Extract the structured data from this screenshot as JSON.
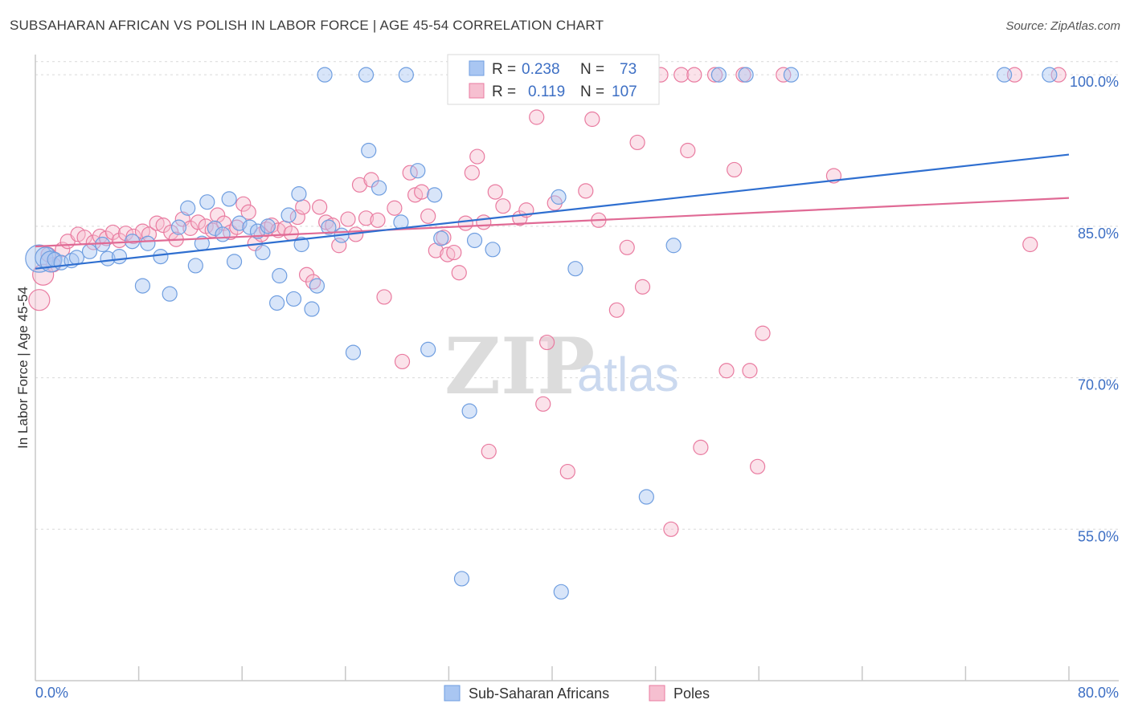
{
  "title": "SUBSAHARAN AFRICAN VS POLISH IN LABOR FORCE | AGE 45-54 CORRELATION CHART",
  "source": "Source: ZipAtlas.com",
  "colors": {
    "blue": "#6f9ee0",
    "blue_fill": "#a9c6f2",
    "pink": "#e97ba0",
    "pink_fill": "#f6bfd0",
    "blue_line": "#2f6fd0",
    "pink_line": "#e06a95",
    "grid": "#d9d9d9",
    "tick_text": "#3d6fc4"
  },
  "legend": {
    "r_label": "R =",
    "n_label": "N =",
    "series1": {
      "r": "0.238",
      "n": "73"
    },
    "series2": {
      "r": "0.119",
      "n": "107"
    }
  },
  "watermark": {
    "zip": "ZIP",
    "atlas": "atlas"
  },
  "chart_data": {
    "type": "scatter",
    "title": "SUBSAHARAN AFRICAN VS POLISH IN LABOR FORCE | AGE 45-54 CORRELATION CHART",
    "xlabel": "",
    "ylabel": "In Labor Force | Age 45-54",
    "xlim": [
      0,
      80
    ],
    "ylim": [
      40,
      102
    ],
    "x_tick_labels": [
      "0.0%",
      "80.0%"
    ],
    "y_ticks": [
      55,
      70,
      85,
      100
    ],
    "y_tick_labels": [
      "55.0%",
      "70.0%",
      "85.0%",
      "100.0%"
    ],
    "grid": true,
    "legend_position": "top-center",
    "series": [
      {
        "name": "Sub-Saharan Africans",
        "color": "blue",
        "r": 0.238,
        "n": 73,
        "trend": {
          "x": [
            0,
            80
          ],
          "y": [
            80.8,
            92.1
          ]
        },
        "points": [
          [
            0.3,
            81.8,
            3
          ],
          [
            0.8,
            81.9,
            2
          ],
          [
            1.2,
            81.5,
            2
          ],
          [
            1.5,
            81.7,
            1
          ],
          [
            2.0,
            81.4,
            1
          ],
          [
            2.8,
            81.6,
            1
          ],
          [
            3.2,
            81.9,
            1
          ],
          [
            4.2,
            82.5,
            1
          ],
          [
            5.2,
            83.2,
            1
          ],
          [
            5.6,
            81.8,
            1
          ],
          [
            6.5,
            82.0,
            1
          ],
          [
            7.5,
            83.5,
            1
          ],
          [
            8.3,
            79.1,
            1
          ],
          [
            8.7,
            83.3,
            1
          ],
          [
            9.7,
            82.0,
            1
          ],
          [
            10.4,
            78.3,
            1
          ],
          [
            11.1,
            84.9,
            1
          ],
          [
            11.8,
            86.8,
            1
          ],
          [
            12.4,
            81.1,
            1
          ],
          [
            12.9,
            83.3,
            1
          ],
          [
            13.3,
            87.4,
            1
          ],
          [
            13.9,
            84.8,
            1
          ],
          [
            14.5,
            84.2,
            1
          ],
          [
            15.0,
            87.7,
            1
          ],
          [
            15.4,
            81.5,
            1
          ],
          [
            15.8,
            85.3,
            1
          ],
          [
            16.6,
            84.9,
            1
          ],
          [
            17.2,
            84.5,
            1
          ],
          [
            17.6,
            82.4,
            1
          ],
          [
            18.0,
            85.0,
            1
          ],
          [
            18.7,
            77.4,
            1
          ],
          [
            18.9,
            80.1,
            1
          ],
          [
            19.6,
            86.1,
            1
          ],
          [
            20.0,
            77.8,
            1
          ],
          [
            20.4,
            88.2,
            1
          ],
          [
            20.6,
            83.2,
            1
          ],
          [
            21.4,
            76.8,
            1
          ],
          [
            21.8,
            79.1,
            1
          ],
          [
            22.4,
            100.0,
            1
          ],
          [
            22.7,
            84.9,
            1
          ],
          [
            23.7,
            84.1,
            1
          ],
          [
            24.6,
            72.5,
            1
          ],
          [
            25.6,
            100.0,
            1
          ],
          [
            25.8,
            92.5,
            1
          ],
          [
            26.6,
            88.8,
            1
          ],
          [
            28.3,
            85.4,
            1
          ],
          [
            28.7,
            100.0,
            1
          ],
          [
            29.6,
            90.5,
            1
          ],
          [
            30.4,
            72.8,
            1
          ],
          [
            30.9,
            88.1,
            1
          ],
          [
            31.4,
            83.8,
            1
          ],
          [
            33.0,
            50.1,
            1
          ],
          [
            33.6,
            66.7,
            1
          ],
          [
            34.0,
            83.6,
            1
          ],
          [
            35.0,
            100.0,
            1
          ],
          [
            35.4,
            82.7,
            1
          ],
          [
            40.5,
            87.9,
            1
          ],
          [
            40.7,
            48.8,
            1
          ],
          [
            41.8,
            80.8,
            1
          ],
          [
            43.1,
            100.0,
            1
          ],
          [
            47.3,
            58.2,
            1
          ],
          [
            49.4,
            83.1,
            1
          ],
          [
            52.9,
            100.0,
            1
          ],
          [
            55.0,
            100.0,
            1
          ],
          [
            58.5,
            100.0,
            1
          ],
          [
            75.0,
            100.0,
            1
          ],
          [
            78.5,
            100.0,
            1
          ]
        ]
      },
      {
        "name": "Poles",
        "color": "pink",
        "r": 0.119,
        "n": 107,
        "trend": {
          "x": [
            0,
            80
          ],
          "y": [
            83.0,
            87.8
          ]
        },
        "points": [
          [
            0.3,
            77.7,
            2
          ],
          [
            0.6,
            80.2,
            2
          ],
          [
            1.0,
            82.2,
            1
          ],
          [
            1.4,
            81.2,
            1
          ],
          [
            2.1,
            82.7,
            1
          ],
          [
            2.5,
            83.5,
            1
          ],
          [
            3.3,
            84.2,
            1
          ],
          [
            3.8,
            83.9,
            1
          ],
          [
            4.5,
            83.4,
            1
          ],
          [
            5.0,
            84.0,
            1
          ],
          [
            5.5,
            83.8,
            1
          ],
          [
            6.0,
            84.4,
            1
          ],
          [
            6.5,
            83.6,
            1
          ],
          [
            7.0,
            84.3,
            1
          ],
          [
            7.6,
            84.0,
            1
          ],
          [
            8.3,
            84.5,
            1
          ],
          [
            8.8,
            84.2,
            1
          ],
          [
            9.4,
            85.3,
            1
          ],
          [
            9.9,
            85.1,
            1
          ],
          [
            10.5,
            84.4,
            1
          ],
          [
            10.9,
            83.7,
            1
          ],
          [
            11.4,
            85.7,
            1
          ],
          [
            12.0,
            84.8,
            1
          ],
          [
            12.6,
            85.4,
            1
          ],
          [
            13.2,
            85.0,
            1
          ],
          [
            13.7,
            84.6,
            1
          ],
          [
            14.1,
            86.1,
            1
          ],
          [
            14.6,
            85.3,
            1
          ],
          [
            15.1,
            84.4,
            1
          ],
          [
            15.6,
            84.9,
            1
          ],
          [
            16.1,
            87.2,
            1
          ],
          [
            16.5,
            86.4,
            1
          ],
          [
            17.0,
            83.3,
            1
          ],
          [
            17.5,
            84.2,
            1
          ],
          [
            17.9,
            84.7,
            1
          ],
          [
            18.3,
            85.1,
            1
          ],
          [
            18.8,
            84.6,
            1
          ],
          [
            19.3,
            84.8,
            1
          ],
          [
            19.8,
            84.3,
            1
          ],
          [
            20.3,
            85.9,
            1
          ],
          [
            20.7,
            86.9,
            1
          ],
          [
            21.0,
            80.2,
            1
          ],
          [
            21.5,
            79.5,
            1
          ],
          [
            22.0,
            86.9,
            1
          ],
          [
            22.5,
            85.4,
            1
          ],
          [
            23.0,
            85.1,
            1
          ],
          [
            23.5,
            83.1,
            1
          ],
          [
            24.2,
            85.7,
            1
          ],
          [
            24.8,
            84.2,
            1
          ],
          [
            25.1,
            89.1,
            1
          ],
          [
            25.6,
            85.8,
            1
          ],
          [
            26.0,
            89.6,
            1
          ],
          [
            26.5,
            85.6,
            1
          ],
          [
            27.0,
            78.0,
            1
          ],
          [
            27.8,
            86.8,
            1
          ],
          [
            28.4,
            71.6,
            1
          ],
          [
            29.0,
            90.3,
            1
          ],
          [
            29.4,
            88.1,
            1
          ],
          [
            29.9,
            88.4,
            1
          ],
          [
            30.4,
            86.0,
            1
          ],
          [
            31.0,
            82.6,
            1
          ],
          [
            31.6,
            83.9,
            1
          ],
          [
            31.9,
            82.2,
            1
          ],
          [
            32.4,
            82.4,
            1
          ],
          [
            32.8,
            80.4,
            1
          ],
          [
            33.3,
            85.3,
            1
          ],
          [
            33.8,
            90.3,
            1
          ],
          [
            34.2,
            91.9,
            1
          ],
          [
            34.7,
            85.4,
            1
          ],
          [
            35.1,
            62.7,
            1
          ],
          [
            35.6,
            88.4,
            1
          ],
          [
            36.2,
            87.0,
            1
          ],
          [
            37.0,
            100.0,
            1
          ],
          [
            37.5,
            85.8,
            1
          ],
          [
            38.0,
            86.6,
            1
          ],
          [
            38.8,
            95.8,
            1
          ],
          [
            39.3,
            67.4,
            1
          ],
          [
            39.6,
            73.5,
            1
          ],
          [
            40.2,
            87.3,
            1
          ],
          [
            41.2,
            60.7,
            1
          ],
          [
            42.0,
            100.0,
            1
          ],
          [
            42.6,
            88.5,
            1
          ],
          [
            43.1,
            95.6,
            1
          ],
          [
            43.6,
            85.6,
            1
          ],
          [
            45.0,
            76.7,
            1
          ],
          [
            45.8,
            82.9,
            1
          ],
          [
            46.6,
            93.3,
            1
          ],
          [
            47.0,
            79.0,
            1
          ],
          [
            48.4,
            100.0,
            1
          ],
          [
            49.2,
            55.0,
            1
          ],
          [
            50.0,
            100.0,
            1
          ],
          [
            50.5,
            92.5,
            1
          ],
          [
            51.0,
            100.0,
            1
          ],
          [
            51.5,
            63.1,
            1
          ],
          [
            52.6,
            100.0,
            1
          ],
          [
            53.5,
            70.7,
            1
          ],
          [
            54.1,
            90.6,
            1
          ],
          [
            54.8,
            100.0,
            1
          ],
          [
            55.3,
            70.7,
            1
          ],
          [
            55.9,
            61.2,
            1
          ],
          [
            56.3,
            74.4,
            1
          ],
          [
            57.9,
            100.0,
            1
          ],
          [
            61.8,
            90.0,
            1
          ],
          [
            75.8,
            100.0,
            1
          ],
          [
            77.0,
            83.2,
            1
          ],
          [
            79.2,
            100.0,
            1
          ]
        ]
      }
    ]
  },
  "bottom_legend": {
    "series1": "Sub-Saharan Africans",
    "series2": "Poles"
  }
}
